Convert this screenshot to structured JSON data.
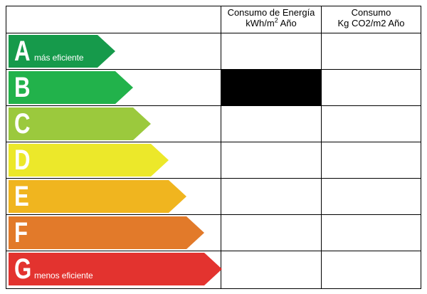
{
  "headers": {
    "energy_line1": "Consumo de Energía",
    "energy_line2_unit": "kWh/m",
    "energy_line2_sup": "2",
    "energy_line2_suffix": " Año",
    "co2_line1": "Consumo",
    "co2_line2": "Kg CO2/m2 Año"
  },
  "ratings": [
    {
      "letter": "A",
      "caption": "más eficiente",
      "color": "#169a4b"
    },
    {
      "letter": "B",
      "caption": "",
      "color": "#22b24b"
    },
    {
      "letter": "C",
      "caption": "",
      "color": "#9bc93d"
    },
    {
      "letter": "D",
      "caption": "",
      "color": "#ece82a"
    },
    {
      "letter": "E",
      "caption": "",
      "color": "#f0b51f"
    },
    {
      "letter": "F",
      "caption": "",
      "color": "#e27a2a"
    },
    {
      "letter": "G",
      "caption": "menos eficiente",
      "color": "#e3332f"
    }
  ],
  "selected_energy_rating": "B",
  "selected_fill_color": "#000000"
}
